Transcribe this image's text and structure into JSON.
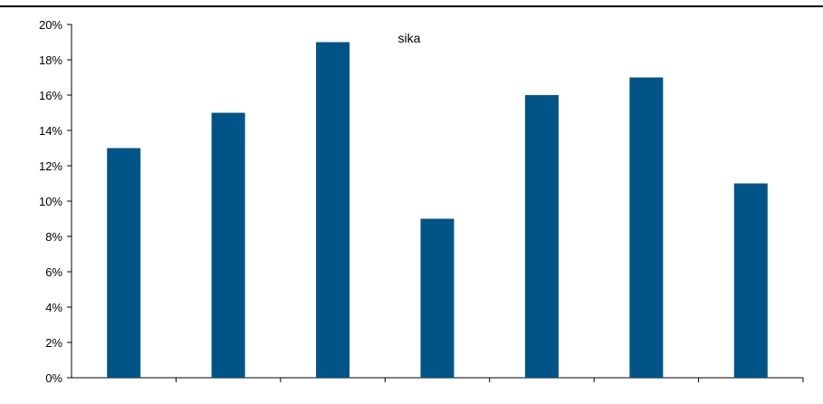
{
  "chart_data": {
    "type": "bar",
    "title": "",
    "xlabel": "",
    "ylabel": "",
    "categories": [
      "",
      "",
      "",
      "",
      "",
      "",
      ""
    ],
    "series": [
      {
        "name": "sika",
        "values": [
          13,
          15,
          19,
          9,
          16,
          17,
          11
        ]
      }
    ],
    "y_ticks": [
      0,
      2,
      4,
      6,
      8,
      10,
      12,
      14,
      16,
      18,
      20
    ],
    "y_tick_suffix": "%",
    "ylim": [
      0,
      20
    ],
    "grid": false,
    "legend": "top-center",
    "bar_color": "#005487"
  }
}
